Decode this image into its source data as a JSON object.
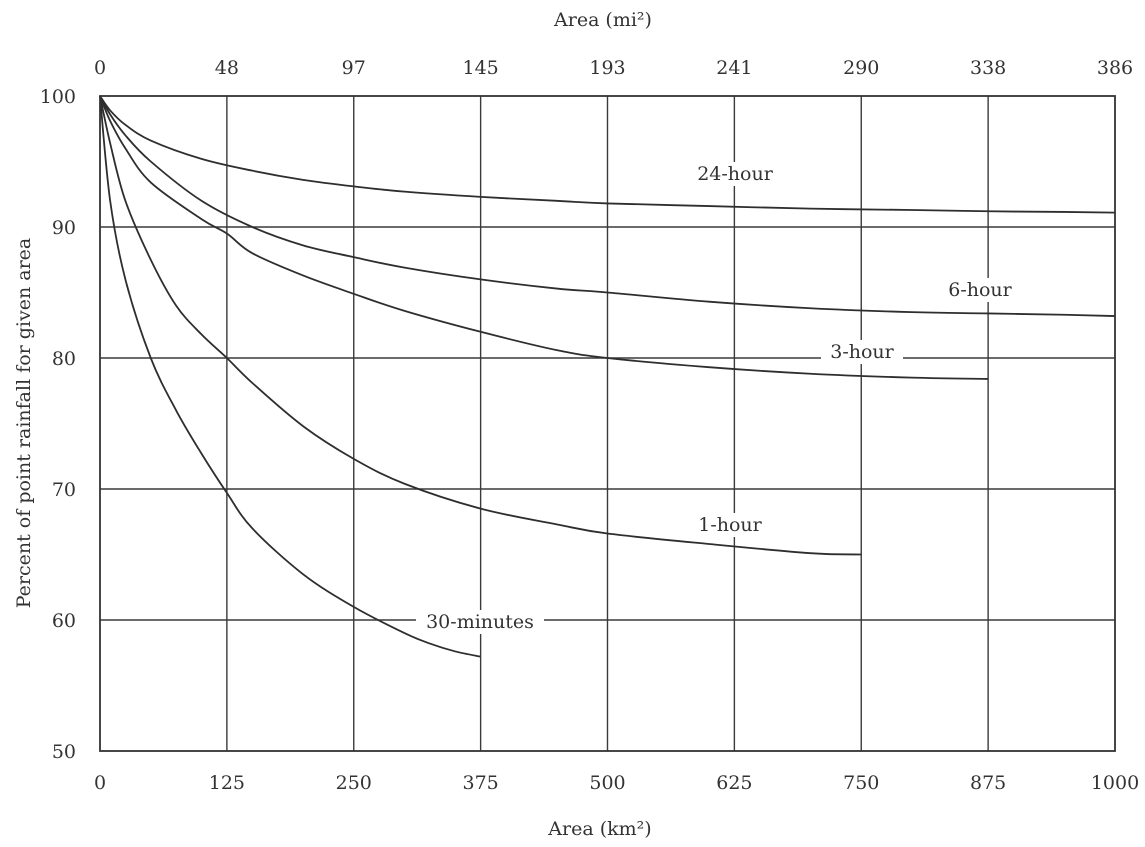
{
  "chart_data": {
    "type": "line",
    "title": "",
    "xlabel": "Area (km²)",
    "x2label": "Area (mi²)",
    "ylabel": "Percent of point rainfall for given area",
    "xlim": [
      0,
      1000
    ],
    "ylim": [
      50,
      100
    ],
    "x_ticks": [
      0,
      125,
      250,
      375,
      500,
      625,
      750,
      875,
      1000
    ],
    "x2_tick_labels": [
      "0",
      "48",
      "97",
      "145",
      "193",
      "241",
      "290",
      "338",
      "386"
    ],
    "y_ticks": [
      50,
      60,
      70,
      80,
      90,
      100
    ],
    "grid": true,
    "series": [
      {
        "name": "24-hour",
        "x": [
          0,
          10,
          25,
          50,
          100,
          150,
          200,
          250,
          300,
          375,
          450,
          500,
          600,
          700,
          800,
          875,
          950,
          1000
        ],
        "y": [
          100,
          98.9,
          97.8,
          96.6,
          95.2,
          94.3,
          93.6,
          93.1,
          92.7,
          92.3,
          92.0,
          91.8,
          91.6,
          91.4,
          91.3,
          91.2,
          91.15,
          91.1
        ]
      },
      {
        "name": "6-hour",
        "x": [
          0,
          10,
          25,
          50,
          100,
          150,
          200,
          250,
          300,
          375,
          450,
          500,
          600,
          700,
          800,
          875,
          950,
          1000
        ],
        "y": [
          100,
          98.6,
          97.0,
          95.0,
          92.0,
          90.0,
          88.6,
          87.7,
          86.9,
          86.0,
          85.3,
          85.0,
          84.3,
          83.8,
          83.5,
          83.4,
          83.3,
          83.2
        ]
      },
      {
        "name": "3-hour",
        "x": [
          0,
          10,
          25,
          50,
          100,
          125,
          150,
          200,
          250,
          300,
          375,
          450,
          500,
          600,
          700,
          800,
          875
        ],
        "y": [
          100,
          98.1,
          96.0,
          93.4,
          90.6,
          89.5,
          88.0,
          86.3,
          84.9,
          83.6,
          82.0,
          80.6,
          80.0,
          79.3,
          78.8,
          78.5,
          78.4
        ]
      },
      {
        "name": "1-hour",
        "x": [
          0,
          10,
          25,
          50,
          75,
          100,
          125,
          150,
          200,
          250,
          300,
          375,
          450,
          500,
          600,
          700,
          750
        ],
        "y": [
          100,
          96.4,
          92.0,
          87.5,
          84.0,
          81.8,
          80.0,
          78.1,
          74.8,
          72.3,
          70.4,
          68.5,
          67.3,
          66.6,
          65.8,
          65.1,
          65.0
        ]
      },
      {
        "name": "30-minutes",
        "x": [
          0,
          10,
          25,
          50,
          75,
          100,
          125,
          150,
          200,
          250,
          300,
          325,
          350,
          375
        ],
        "y": [
          100,
          92.0,
          86.0,
          80.0,
          76.0,
          72.7,
          69.7,
          67.0,
          63.5,
          61.0,
          59.0,
          58.2,
          57.6,
          57.2
        ]
      }
    ]
  }
}
